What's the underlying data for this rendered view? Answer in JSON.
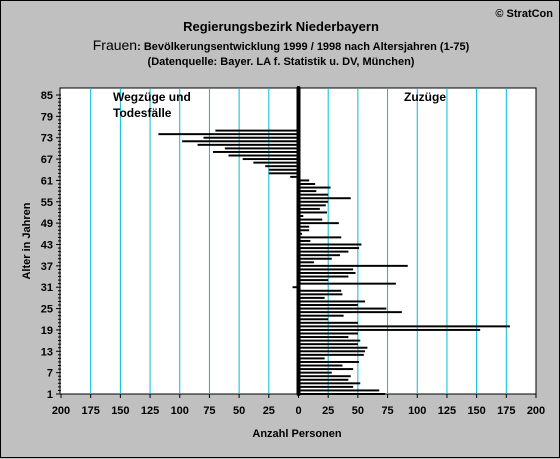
{
  "copyright": "© StratCon",
  "title": "Regierungsbezirk Niederbayern",
  "subtitle_prefix": "Frauen",
  "subtitle_rest": ": Bevölkerungsentwicklung 1999 / 1998  nach Altersjahren (1-75)",
  "subtitle2": "(Datenquelle: Bayer. LA f. Statistik u. DV, München)",
  "colors": {
    "background": "#c0c0c0",
    "plot_background": "#ffffff",
    "gridline": "#00bcd4",
    "bars": "#000000",
    "annotation_left": "#e00000",
    "annotation_right": "#008000"
  },
  "chart_data": {
    "type": "bar",
    "orientation": "horizontal",
    "xlabel": "Anzahl Personen",
    "ylabel": "Alter in Jahren",
    "xlim": [
      -200,
      200
    ],
    "ylim": [
      1,
      85
    ],
    "x_ticks": [
      -200,
      -175,
      -150,
      -125,
      -100,
      -75,
      -50,
      -25,
      0,
      25,
      50,
      75,
      100,
      125,
      150,
      175,
      200
    ],
    "x_tick_labels": [
      "200",
      "175",
      "150",
      "125",
      "100",
      "75",
      "50",
      "25",
      "0",
      "25",
      "50",
      "75",
      "100",
      "125",
      "150",
      "175",
      "200"
    ],
    "y_ticks": [
      1,
      7,
      13,
      19,
      25,
      31,
      37,
      43,
      49,
      55,
      61,
      67,
      73,
      79,
      85
    ],
    "y_tick_labels": [
      "1",
      "7",
      "13",
      "19",
      "25",
      "31",
      "37",
      "43",
      "49",
      "55",
      "61",
      "67",
      "73",
      "79",
      "85"
    ],
    "grid": "vertical",
    "annotations": [
      {
        "text": "Wegzüge und",
        "side": "left"
      },
      {
        "text": "Todesfälle",
        "side": "left"
      },
      {
        "text": "Zuzüge",
        "side": "right"
      }
    ],
    "ages": [
      1,
      2,
      3,
      4,
      5,
      6,
      7,
      8,
      9,
      10,
      11,
      12,
      13,
      14,
      15,
      16,
      17,
      18,
      19,
      20,
      21,
      22,
      23,
      24,
      25,
      26,
      27,
      28,
      29,
      30,
      31,
      32,
      33,
      34,
      35,
      36,
      37,
      38,
      39,
      40,
      41,
      42,
      43,
      44,
      45,
      46,
      47,
      48,
      49,
      50,
      51,
      52,
      53,
      54,
      55,
      56,
      57,
      58,
      59,
      60,
      61,
      62,
      63,
      64,
      65,
      66,
      67,
      68,
      69,
      70,
      71,
      72,
      73,
      74,
      75
    ],
    "values": [
      73,
      68,
      46,
      52,
      42,
      44,
      28,
      46,
      37,
      51,
      22,
      55,
      56,
      58,
      50,
      52,
      42,
      50,
      153,
      178,
      50,
      25,
      38,
      87,
      74,
      50,
      56,
      22,
      37,
      36,
      -5,
      82,
      25,
      42,
      48,
      46,
      92,
      13,
      28,
      35,
      42,
      51,
      53,
      10,
      36,
      3,
      9,
      9,
      34,
      20,
      4,
      24,
      18,
      23,
      25,
      44,
      25,
      15,
      27,
      14,
      9,
      -7,
      -25,
      -25,
      -28,
      -38,
      -47,
      -59,
      -72,
      -62,
      -85,
      -98,
      -80,
      -118,
      -70
    ]
  }
}
